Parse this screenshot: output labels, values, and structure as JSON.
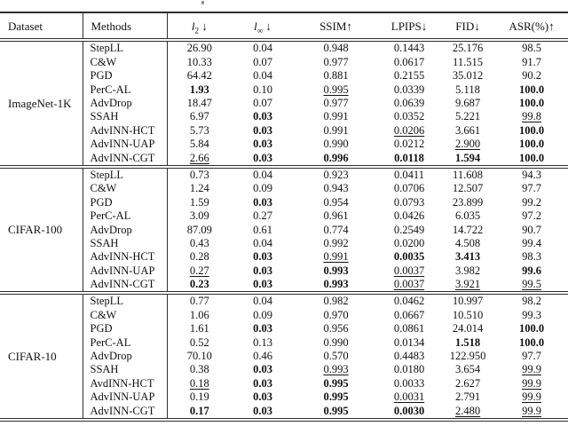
{
  "table": {
    "columns": [
      {
        "key": "dataset",
        "label": "Dataset"
      },
      {
        "key": "methods",
        "label": "Methods"
      },
      {
        "key": "l2",
        "math": {
          "base": "l",
          "sub": "2"
        },
        "arrow": " ↓"
      },
      {
        "key": "linf",
        "math": {
          "base": "l",
          "sub": "∞"
        },
        "arrow": " ↓"
      },
      {
        "key": "ssim",
        "label": "SSIM↑"
      },
      {
        "key": "lpips",
        "label": "LPIPS↓"
      },
      {
        "key": "fid",
        "label": "FID↓"
      },
      {
        "key": "asr",
        "label": "ASR(%)↑"
      }
    ],
    "sections": [
      {
        "dataset": "ImageNet-1K",
        "rows": [
          {
            "method": "StepLL",
            "values": [
              "26.90",
              "0.04",
              "0.948",
              "0.1443",
              "25.176",
              "98.5"
            ],
            "format": [
              "",
              "",
              "",
              "",
              "",
              ""
            ]
          },
          {
            "method": "C&W",
            "values": [
              "10.33",
              "0.07",
              "0.977",
              "0.0617",
              "11.515",
              "91.7"
            ],
            "format": [
              "",
              "",
              "",
              "",
              "",
              ""
            ]
          },
          {
            "method": "PGD",
            "values": [
              "64.42",
              "0.04",
              "0.881",
              "0.2155",
              "35.012",
              "90.2"
            ],
            "format": [
              "",
              "",
              "",
              "",
              "",
              ""
            ]
          },
          {
            "method": "PerC-AL",
            "values": [
              "1.93",
              "0.10",
              "0.995",
              "0.0339",
              "5.118",
              "100.0"
            ],
            "format": [
              "b",
              "",
              "u",
              "",
              "",
              "b"
            ]
          },
          {
            "method": "AdvDrop",
            "values": [
              "18.47",
              "0.07",
              "0.977",
              "0.0639",
              "9.687",
              "100.0"
            ],
            "format": [
              "",
              "",
              "",
              "",
              "",
              "b"
            ]
          },
          {
            "method": "SSAH",
            "values": [
              "6.97",
              "0.03",
              "0.991",
              "0.0352",
              "5.221",
              "99.8"
            ],
            "format": [
              "",
              "b",
              "",
              "",
              "",
              "u"
            ]
          },
          {
            "method": "AdvINN-HCT",
            "values": [
              "5.73",
              "0.03",
              "0.991",
              "0.0206",
              "3.661",
              "100.0"
            ],
            "format": [
              "",
              "b",
              "",
              "u",
              "",
              "b"
            ]
          },
          {
            "method": "AdvINN-UAP",
            "values": [
              "5.84",
              "0.03",
              "0.990",
              "0.0212",
              "2.900",
              "100.0"
            ],
            "format": [
              "",
              "b",
              "",
              "",
              "u",
              "b"
            ]
          },
          {
            "method": "AdvINN-CGT",
            "values": [
              "2.66",
              "0.03",
              "0.996",
              "0.0118",
              "1.594",
              "100.0"
            ],
            "format": [
              "u",
              "b",
              "b",
              "b",
              "b",
              "b"
            ]
          }
        ]
      },
      {
        "dataset": "CIFAR-100",
        "rows": [
          {
            "method": "StepLL",
            "values": [
              "0.73",
              "0.04",
              "0.923",
              "0.0411",
              "11.608",
              "94.3"
            ],
            "format": [
              "",
              "",
              "",
              "",
              "",
              ""
            ]
          },
          {
            "method": "C&W",
            "values": [
              "1.24",
              "0.09",
              "0.943",
              "0.0706",
              "12.507",
              "97.7"
            ],
            "format": [
              "",
              "",
              "",
              "",
              "",
              ""
            ]
          },
          {
            "method": "PGD",
            "values": [
              "1.59",
              "0.03",
              "0.954",
              "0.0793",
              "23.899",
              "99.2"
            ],
            "format": [
              "",
              "b",
              "",
              "",
              "",
              ""
            ]
          },
          {
            "method": "PerC-AL",
            "values": [
              "3.09",
              "0.27",
              "0.961",
              "0.0426",
              "6.035",
              "97.2"
            ],
            "format": [
              "",
              "",
              "",
              "",
              "",
              ""
            ]
          },
          {
            "method": "AdvDrop",
            "values": [
              "87.09",
              "0.61",
              "0.774",
              "0.2549",
              "14.722",
              "90.7"
            ],
            "format": [
              "",
              "",
              "",
              "",
              "",
              ""
            ]
          },
          {
            "method": "SSAH",
            "values": [
              "0.43",
              "0.04",
              "0.992",
              "0.0200",
              "4.508",
              "99.4"
            ],
            "format": [
              "",
              "",
              "",
              "",
              "",
              ""
            ]
          },
          {
            "method": "AdvINN-HCT",
            "values": [
              "0.28",
              "0.03",
              "0.991",
              "0.0035",
              "3.413",
              "98.3"
            ],
            "format": [
              "",
              "b",
              "u",
              "b",
              "b",
              ""
            ]
          },
          {
            "method": "AdvINN-UAP",
            "values": [
              "0.27",
              "0.03",
              "0.993",
              "0.0037",
              "3.982",
              "99.6"
            ],
            "format": [
              "u",
              "b",
              "b",
              "u",
              "",
              "b"
            ]
          },
          {
            "method": "AdvINN-CGT",
            "values": [
              "0.23",
              "0.03",
              "0.993",
              "0.0037",
              "3.921",
              "99.5"
            ],
            "format": [
              "b",
              "b",
              "b",
              "u",
              "u",
              "u"
            ]
          }
        ]
      },
      {
        "dataset": "CIFAR-10",
        "rows": [
          {
            "method": "StepLL",
            "values": [
              "0.77",
              "0.04",
              "0.982",
              "0.0462",
              "10.997",
              "98.2"
            ],
            "format": [
              "",
              "",
              "",
              "",
              "",
              ""
            ]
          },
          {
            "method": "C&W",
            "values": [
              "1.06",
              "0.09",
              "0.970",
              "0.0667",
              "10.510",
              "99.3"
            ],
            "format": [
              "",
              "",
              "",
              "",
              "",
              ""
            ]
          },
          {
            "method": "PGD",
            "values": [
              "1.61",
              "0.03",
              "0.956",
              "0.0861",
              "24.014",
              "100.0"
            ],
            "format": [
              "",
              "b",
              "",
              "",
              "",
              "b"
            ]
          },
          {
            "method": "PerC-AL",
            "values": [
              "0.52",
              "0.13",
              "0.990",
              "0.0134",
              "1.518",
              "100.0"
            ],
            "format": [
              "",
              "",
              "",
              "",
              "b",
              "b"
            ]
          },
          {
            "method": "AdvDrop",
            "values": [
              "70.10",
              "0.46",
              "0.570",
              "0.4483",
              "122.950",
              "97.7"
            ],
            "format": [
              "",
              "",
              "",
              "",
              "",
              ""
            ]
          },
          {
            "method": "SSAH",
            "values": [
              "0.38",
              "0.03",
              "0.993",
              "0.0180",
              "3.654",
              "99.9"
            ],
            "format": [
              "",
              "b",
              "u",
              "",
              "",
              "u"
            ]
          },
          {
            "method": "AvdINN-HCT",
            "values": [
              "0.18",
              "0.03",
              "0.995",
              "0.0033",
              "2.627",
              "99.9"
            ],
            "format": [
              "u",
              "b",
              "b",
              "",
              "",
              "u"
            ]
          },
          {
            "method": "AdvINN-UAP",
            "values": [
              "0.19",
              "0.03",
              "0.995",
              "0.0031",
              "2.791",
              "99.9"
            ],
            "format": [
              "",
              "b",
              "b",
              "u",
              "",
              "u"
            ]
          },
          {
            "method": "AdvINN-CGT",
            "values": [
              "0.17",
              "0.03",
              "0.995",
              "0.0030",
              "2.480",
              "99.9"
            ],
            "format": [
              "b",
              "b",
              "b",
              "b",
              "u",
              "u"
            ]
          }
        ]
      }
    ]
  },
  "colors": {
    "rule": "#2e2e2e",
    "text": "#111111",
    "background": "#ffffff"
  }
}
